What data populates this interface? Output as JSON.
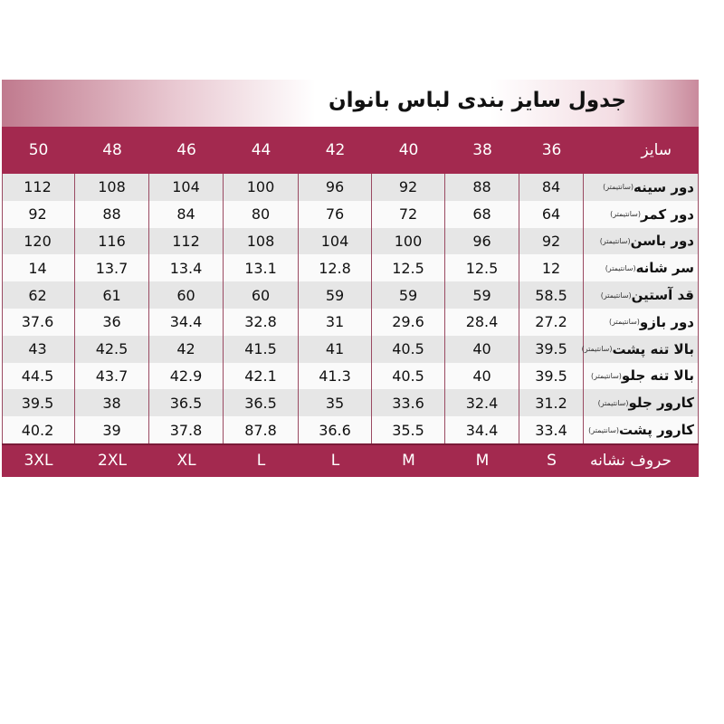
{
  "title": "جدول سایز بندی  لباس  بانوان",
  "colors": {
    "header_bg": "#a3294f",
    "row_alt": "#e6e6e6"
  },
  "header": {
    "label": "سایز",
    "sizes": [
      "36",
      "38",
      "40",
      "42",
      "44",
      "46",
      "48",
      "50"
    ]
  },
  "unit": "(سانتیمتر)",
  "rows": [
    {
      "label": "دور سینه",
      "values": [
        "84",
        "88",
        "92",
        "96",
        "100",
        "104",
        "108",
        "112"
      ]
    },
    {
      "label": "دور کمر",
      "values": [
        "64",
        "68",
        "72",
        "76",
        "80",
        "84",
        "88",
        "92"
      ]
    },
    {
      "label": "دور باسن",
      "values": [
        "92",
        "96",
        "100",
        "104",
        "108",
        "112",
        "116",
        "120"
      ]
    },
    {
      "label": "سر شانه",
      "values": [
        "12",
        "12.5",
        "12.5",
        "12.8",
        "13.1",
        "13.4",
        "13.7",
        "14"
      ]
    },
    {
      "label": "قد آستین",
      "values": [
        "58.5",
        "59",
        "59",
        "59",
        "60",
        "60",
        "61",
        "62"
      ]
    },
    {
      "label": "دور بازو",
      "values": [
        "27.2",
        "28.4",
        "29.6",
        "31",
        "32.8",
        "34.4",
        "36",
        "37.6"
      ]
    },
    {
      "label": "بالا تنه پشت",
      "values": [
        "39.5",
        "40",
        "40.5",
        "41",
        "41.5",
        "42",
        "42.5",
        "43"
      ]
    },
    {
      "label": "بالا تنه جلو",
      "values": [
        "39.5",
        "40",
        "40.5",
        "41.3",
        "42.1",
        "42.9",
        "43.7",
        "44.5"
      ]
    },
    {
      "label": "کارور جلو",
      "values": [
        "31.2",
        "32.4",
        "33.6",
        "35",
        "36.5",
        "36.5",
        "38",
        "39.5"
      ]
    },
    {
      "label": "کارور پشت",
      "values": [
        "33.4",
        "34.4",
        "35.5",
        "36.6",
        "87.8",
        "37.8",
        "39",
        "40.2"
      ]
    }
  ],
  "footer": {
    "label": "حروف  نشانه",
    "letters": [
      "S",
      "M",
      "M",
      "L",
      "L",
      "XL",
      "2XL",
      "3XL"
    ]
  }
}
